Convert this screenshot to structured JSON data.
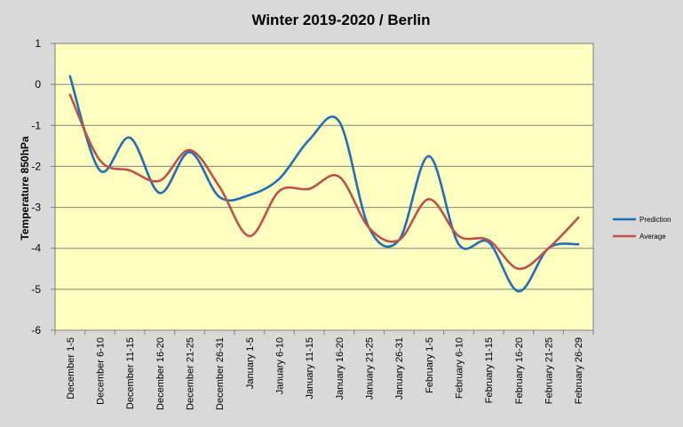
{
  "chart_data": {
    "type": "line",
    "title": "Winter 2019-2020 / Berlin",
    "ylabel": "Temperature 850hPa",
    "xlabel": "",
    "ylim": [
      -6,
      1
    ],
    "yticks": [
      "1",
      "0",
      "-1",
      "-2",
      "-3",
      "-4",
      "-5",
      "-6"
    ],
    "grid": true,
    "legend_position": "right",
    "plot_background": "#ffffc0",
    "categories": [
      "December 1-5",
      "December 6-10",
      "December 11-15",
      "December 16-20",
      "December 21-25",
      "December 26-31",
      "January 1-5",
      "January 6-10",
      "January 11-15",
      "January 16-20",
      "January 21-25",
      "January 26-31",
      "February 1-5",
      "February 6-10",
      "February 11-15",
      "February 16-20",
      "February 21-25",
      "February 26-29"
    ],
    "series": [
      {
        "name": "Prediction",
        "color": "#1f6fb4",
        "values": [
          0.2,
          -2.1,
          -1.3,
          -2.65,
          -1.65,
          -2.75,
          -2.7,
          -2.3,
          -1.35,
          -0.9,
          -3.5,
          -3.8,
          -1.75,
          -3.9,
          -3.85,
          -5.05,
          -4.0,
          -3.9
        ]
      },
      {
        "name": "Average",
        "color": "#c0504d",
        "values": [
          -0.25,
          -1.85,
          -2.1,
          -2.35,
          -1.6,
          -2.5,
          -3.7,
          -2.6,
          -2.55,
          -2.25,
          -3.5,
          -3.8,
          -2.8,
          -3.7,
          -3.8,
          -4.5,
          -4.0,
          -3.25
        ]
      }
    ]
  }
}
